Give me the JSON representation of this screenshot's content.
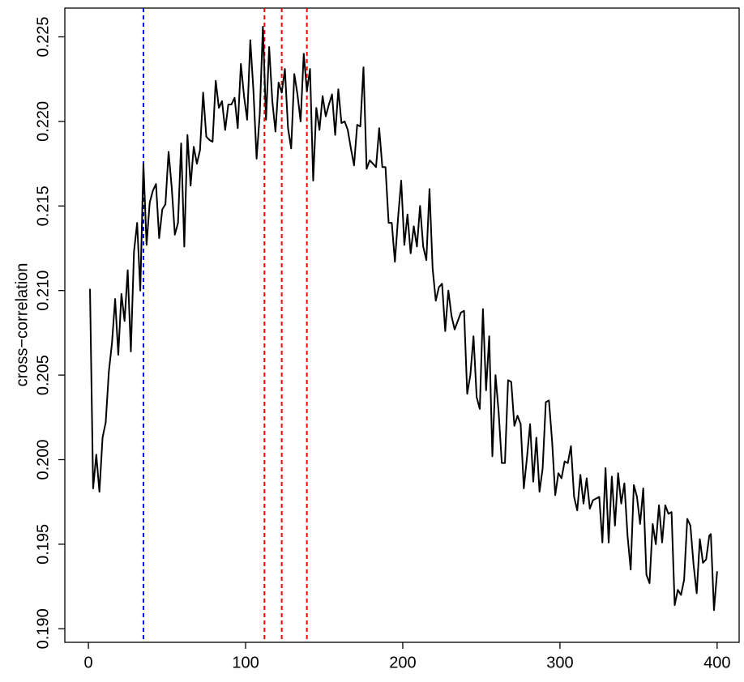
{
  "chart_data": {
    "type": "line",
    "ylabel": "cross−correlation",
    "x": [
      1,
      3,
      5,
      7,
      9,
      11,
      13,
      15,
      17,
      19,
      21,
      23,
      25,
      27,
      29,
      31,
      33,
      35,
      37,
      39,
      41,
      43,
      45,
      47,
      49,
      51,
      53,
      55,
      57,
      59,
      61,
      63,
      65,
      67,
      69,
      71,
      73,
      75,
      77,
      79,
      81,
      83,
      85,
      87,
      89,
      91,
      93,
      95,
      97,
      99,
      101,
      103,
      105,
      107,
      109,
      111,
      113,
      115,
      117,
      119,
      121,
      123,
      125,
      127,
      129,
      131,
      133,
      135,
      137,
      139,
      141,
      143,
      145,
      147,
      149,
      151,
      153,
      155,
      157,
      159,
      161,
      163,
      165,
      167,
      169,
      171,
      173,
      175,
      177,
      179,
      181,
      183,
      185,
      187,
      189,
      191,
      193,
      195,
      197,
      199,
      201,
      203,
      205,
      207,
      209,
      211,
      213,
      215,
      217,
      219,
      221,
      223,
      225,
      227,
      229,
      231,
      233,
      235,
      237,
      239,
      241,
      243,
      245,
      247,
      249,
      251,
      253,
      255,
      257,
      259,
      261,
      263,
      265,
      267,
      269,
      271,
      273,
      275,
      277,
      279,
      281,
      283,
      285,
      287,
      289,
      291,
      293,
      295,
      297,
      299,
      301,
      303,
      305,
      307,
      309,
      311,
      313,
      315,
      317,
      319,
      321,
      323,
      325,
      327,
      329,
      331,
      333,
      335,
      337,
      339,
      341,
      343,
      345,
      347,
      349,
      351,
      353,
      355,
      357,
      359,
      361,
      363,
      365,
      367,
      369,
      371,
      373,
      375,
      377,
      379,
      381,
      383,
      385,
      387,
      389,
      391,
      393,
      395,
      396,
      398,
      400
    ],
    "series": [
      {
        "color": "#000000",
        "values": [
          0.2101,
          0.1983,
          0.2003,
          0.1981,
          0.2013,
          0.2022,
          0.2052,
          0.2069,
          0.2095,
          0.2062,
          0.2098,
          0.2082,
          0.2112,
          0.2064,
          0.2123,
          0.214,
          0.21,
          0.2175,
          0.2127,
          0.2152,
          0.2159,
          0.2163,
          0.2131,
          0.2148,
          0.2151,
          0.2182,
          0.2161,
          0.2133,
          0.214,
          0.2187,
          0.2126,
          0.2192,
          0.2162,
          0.2185,
          0.2175,
          0.2183,
          0.2217,
          0.2191,
          0.2189,
          0.2188,
          0.2224,
          0.2208,
          0.2212,
          0.2195,
          0.221,
          0.221,
          0.2214,
          0.2196,
          0.2234,
          0.2215,
          0.2201,
          0.2248,
          0.2218,
          0.2178,
          0.2204,
          0.2256,
          0.2201,
          0.2244,
          0.2212,
          0.2194,
          0.2223,
          0.2217,
          0.2231,
          0.2196,
          0.2184,
          0.2228,
          0.2216,
          0.22,
          0.224,
          0.2218,
          0.2231,
          0.2165,
          0.2208,
          0.2195,
          0.2215,
          0.2203,
          0.221,
          0.2216,
          0.2192,
          0.2219,
          0.2199,
          0.22,
          0.2195,
          0.2184,
          0.2174,
          0.2198,
          0.2197,
          0.2232,
          0.2172,
          0.2177,
          0.2175,
          0.2173,
          0.2196,
          0.2173,
          0.2173,
          0.214,
          0.214,
          0.2117,
          0.2143,
          0.2165,
          0.2127,
          0.2145,
          0.2122,
          0.2138,
          0.2126,
          0.215,
          0.2126,
          0.2118,
          0.216,
          0.2113,
          0.2094,
          0.2102,
          0.2104,
          0.2076,
          0.21,
          0.2085,
          0.2077,
          0.2082,
          0.2087,
          0.2088,
          0.2039,
          0.205,
          0.2073,
          0.2037,
          0.203,
          0.2089,
          0.2041,
          0.2073,
          0.2002,
          0.205,
          0.2028,
          0.1998,
          0.1998,
          0.2047,
          0.2046,
          0.202,
          0.2026,
          0.2021,
          0.1983,
          0.2001,
          0.2021,
          0.1987,
          0.2013,
          0.1981,
          0.1995,
          0.2034,
          0.2035,
          0.2011,
          0.1979,
          0.1992,
          0.1989,
          0.1999,
          0.1998,
          0.2008,
          0.1978,
          0.197,
          0.1991,
          0.1974,
          0.1989,
          0.1971,
          0.1976,
          0.1977,
          0.1978,
          0.1951,
          0.1995,
          0.1951,
          0.199,
          0.1961,
          0.1992,
          0.1974,
          0.1986,
          0.1955,
          0.1935,
          0.1985,
          0.1978,
          0.1962,
          0.1983,
          0.1932,
          0.1927,
          0.1962,
          0.195,
          0.1973,
          0.1951,
          0.1973,
          0.1968,
          0.1969,
          0.1914,
          0.1923,
          0.192,
          0.1929,
          0.1965,
          0.1961,
          0.1938,
          0.1921,
          0.1953,
          0.1939,
          0.1941,
          0.1955,
          0.1956,
          0.1911,
          0.1934
        ]
      }
    ],
    "vlines": [
      {
        "x": 35,
        "color": "#0000ff"
      },
      {
        "x": 112,
        "color": "#ff0000"
      },
      {
        "x": 123,
        "color": "#ff0000"
      },
      {
        "x": 139,
        "color": "#ff0000"
      }
    ],
    "xlim": [
      -15,
      414
    ],
    "ylim": [
      0.1892,
      0.2267
    ],
    "xticks": [
      0,
      100,
      200,
      300,
      400
    ],
    "yticks": [
      {
        "value": 0.19,
        "label": "0.190"
      },
      0.195,
      {
        "value": 0.2,
        "label": "0.200"
      },
      0.205,
      {
        "value": 0.21,
        "label": "0.210"
      },
      0.215,
      {
        "value": 0.22,
        "label": "0.220"
      },
      0.225
    ]
  }
}
